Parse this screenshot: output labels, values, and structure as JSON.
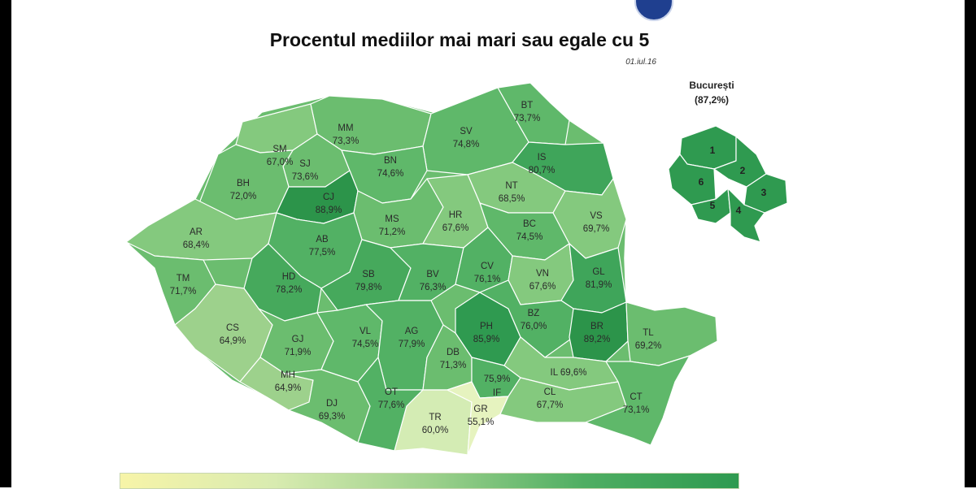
{
  "title": "Procentul mediilor mai mari sau egale cu 5",
  "date": "01.iul.16",
  "bucuresti": {
    "name": "București",
    "value": "(87,2%)",
    "sectors": [
      "1",
      "2",
      "3",
      "4",
      "5",
      "6"
    ]
  },
  "counties": {
    "SM": {
      "code": "SM",
      "value": "67,0%"
    },
    "MM": {
      "code": "MM",
      "value": "73,3%"
    },
    "BT": {
      "code": "BT",
      "value": "73,7%"
    },
    "SV": {
      "code": "SV",
      "value": "74,8%"
    },
    "SJ": {
      "code": "SJ",
      "value": "73,6%"
    },
    "BN": {
      "code": "BN",
      "value": "74,6%"
    },
    "IS": {
      "code": "IS",
      "value": "80,7%"
    },
    "BH": {
      "code": "BH",
      "value": "72,0%"
    },
    "CJ": {
      "code": "CJ",
      "value": "88,9%"
    },
    "NT": {
      "code": "NT",
      "value": "68,5%"
    },
    "AR": {
      "code": "AR",
      "value": "68,4%"
    },
    "MS": {
      "code": "MS",
      "value": "71,2%"
    },
    "HR": {
      "code": "HR",
      "value": "67,6%"
    },
    "BC": {
      "code": "BC",
      "value": "74,5%"
    },
    "VS": {
      "code": "VS",
      "value": "69,7%"
    },
    "AB": {
      "code": "AB",
      "value": "77,5%"
    },
    "TM": {
      "code": "TM",
      "value": "71,7%"
    },
    "HD": {
      "code": "HD",
      "value": "78,2%"
    },
    "SB": {
      "code": "SB",
      "value": "79,8%"
    },
    "BV": {
      "code": "BV",
      "value": "76,3%"
    },
    "CV": {
      "code": "CV",
      "value": "76,1%"
    },
    "VN": {
      "code": "VN",
      "value": "67,6%"
    },
    "GL": {
      "code": "GL",
      "value": "81,9%"
    },
    "CS": {
      "code": "CS",
      "value": "64,9%"
    },
    "GJ": {
      "code": "GJ",
      "value": "71,9%"
    },
    "VL": {
      "code": "VL",
      "value": "74,5%"
    },
    "AG": {
      "code": "AG",
      "value": "77,9%"
    },
    "PH": {
      "code": "PH",
      "value": "85,9%"
    },
    "BZ": {
      "code": "BZ",
      "value": "76,0%"
    },
    "BR": {
      "code": "BR",
      "value": "89,2%"
    },
    "TL": {
      "code": "TL",
      "value": "69,2%"
    },
    "DB": {
      "code": "DB",
      "value": "71,3%"
    },
    "MH": {
      "code": "MH",
      "value": "64,9%"
    },
    "IF": {
      "code": "IF",
      "value": "75,9%"
    },
    "IL": {
      "code": "IL",
      "value": "IL 69,6%"
    },
    "DJ": {
      "code": "DJ",
      "value": "69,3%"
    },
    "OT": {
      "code": "OT",
      "value": "77,6%"
    },
    "TR": {
      "code": "TR",
      "value": "60,0%"
    },
    "GR": {
      "code": "GR",
      "value": "55,1%"
    },
    "CL": {
      "code": "CL",
      "value": "67,7%"
    },
    "CT": {
      "code": "CT",
      "value": "73,1%"
    }
  },
  "colors": {
    "low": "#f7f4a8",
    "light": "#84c97e",
    "mid": "#5fb86a",
    "high": "#3fa55a",
    "top": "#2c944a"
  }
}
